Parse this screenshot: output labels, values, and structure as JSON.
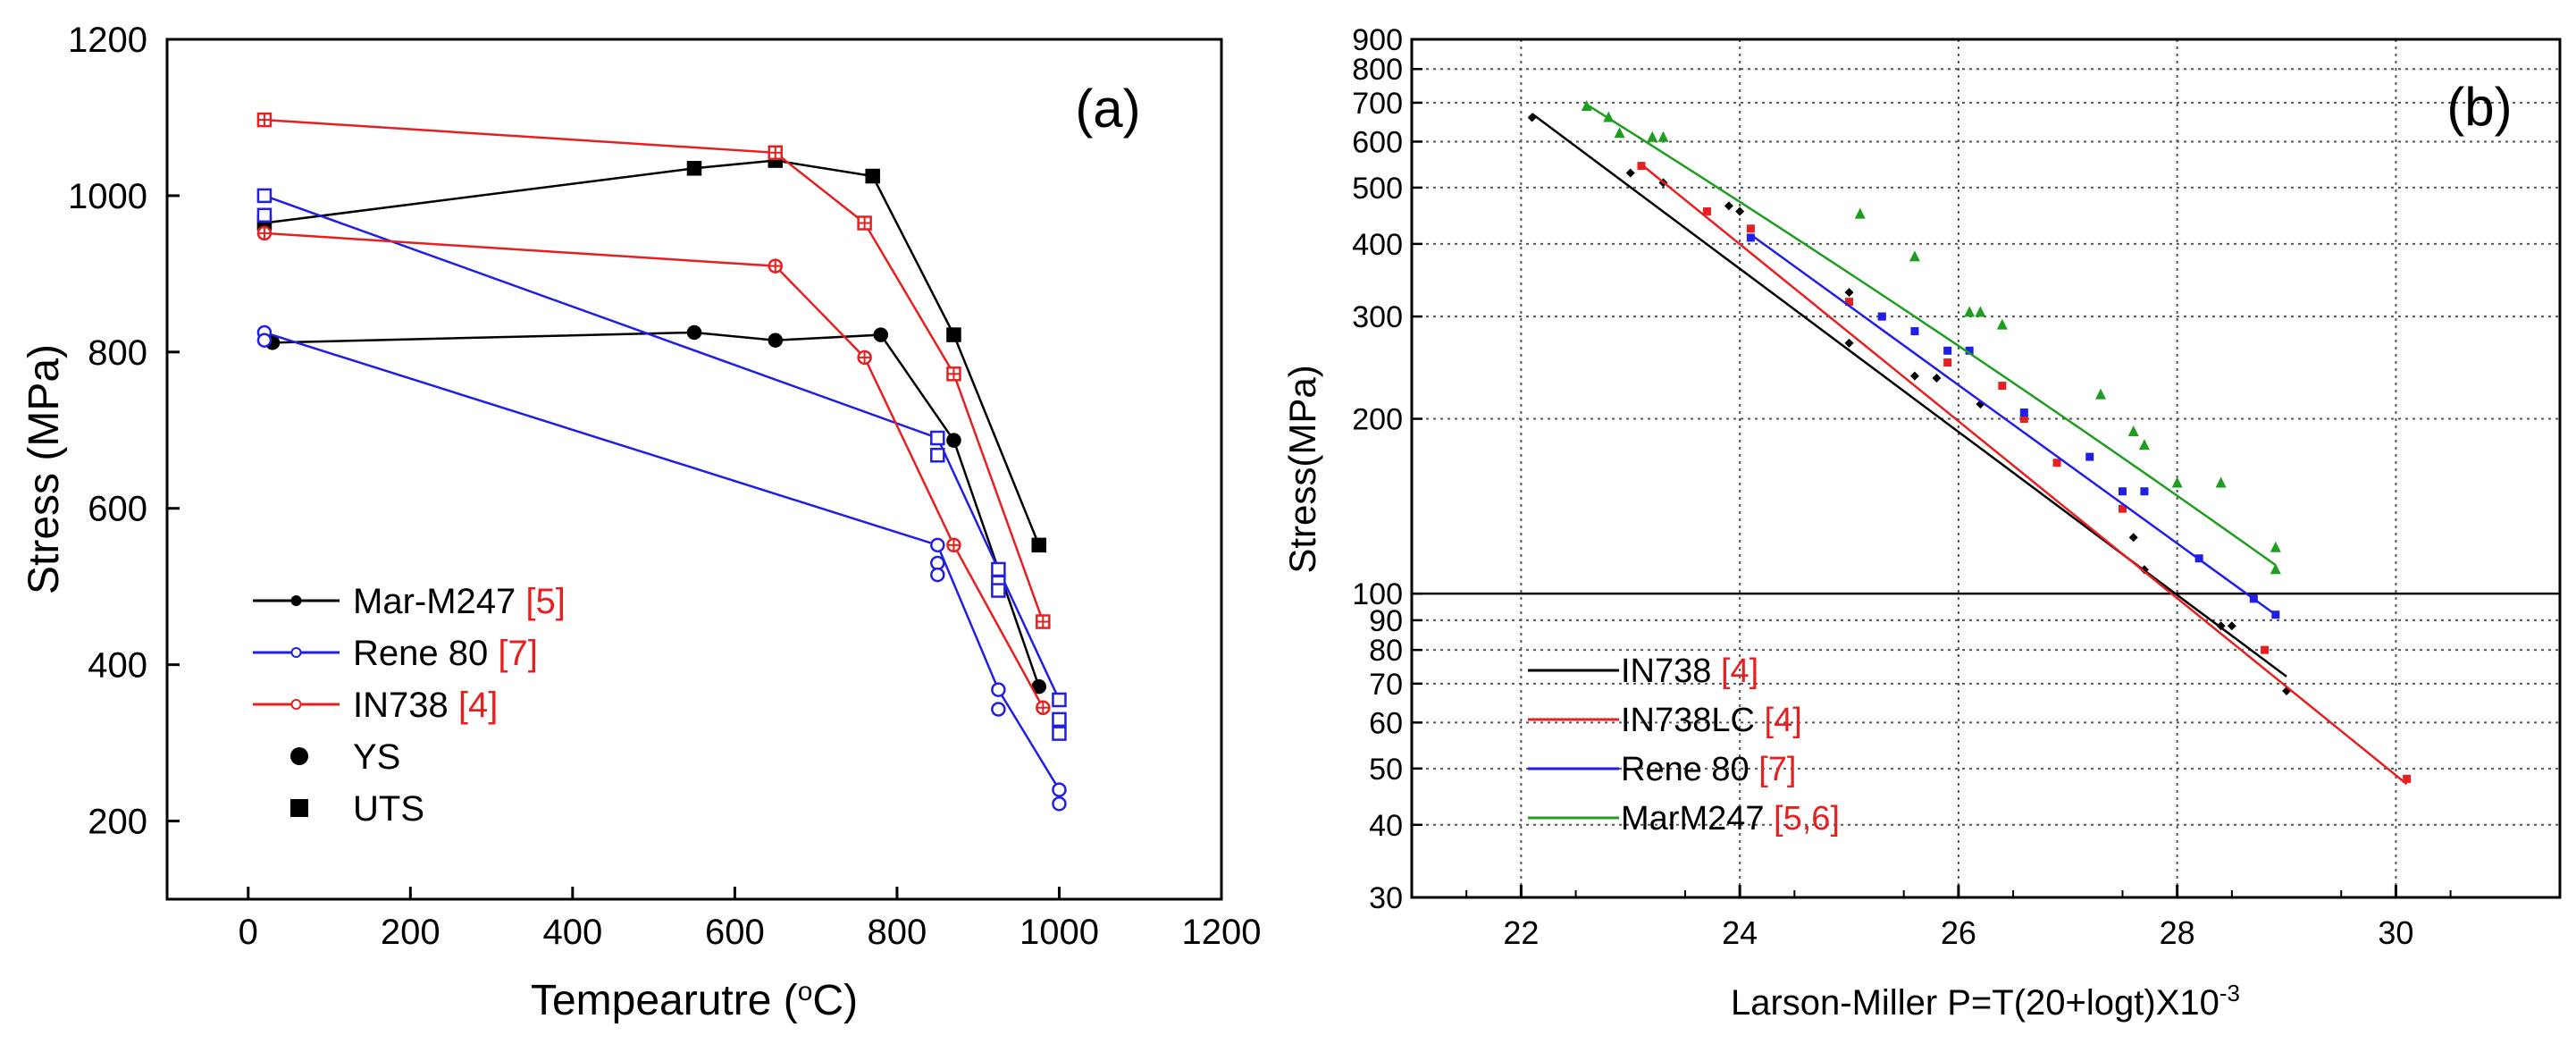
{
  "chart_data": [
    {
      "type": "line",
      "panel_label": "(a)",
      "xlabel_pre": "Tempearutre (",
      "xlabel_sup": "o",
      "xlabel_post": "C)",
      "ylabel": "Stress (MPa)",
      "xlim": [
        -100,
        1200
      ],
      "ylim": [
        100,
        1200
      ],
      "xticks": [
        0,
        200,
        400,
        600,
        800,
        1000,
        1200
      ],
      "yticks": [
        200,
        400,
        600,
        800,
        1000,
        1200
      ],
      "legend": {
        "position": "bottom-left",
        "entries": [
          {
            "name": "Mar-M247",
            "ref": "[5]",
            "color": "#000000",
            "kind": "line"
          },
          {
            "name": "Rene 80",
            "ref": "[7]",
            "color": "#1f1fe6",
            "kind": "line"
          },
          {
            "name": "IN738",
            "ref": "[4]",
            "color": "#e62020",
            "kind": "line"
          },
          {
            "name": "YS",
            "ref": "",
            "color": "#000000",
            "kind": "circle"
          },
          {
            "name": "UTS",
            "ref": "",
            "color": "#000000",
            "kind": "square"
          }
        ]
      },
      "series": [
        {
          "name": "Mar-M247 UTS",
          "color": "#000000",
          "marker": "square-filled",
          "x": [
            20,
            550,
            650,
            770,
            870,
            975
          ],
          "y": [
            965,
            1035,
            1045,
            1025,
            822,
            553
          ]
        },
        {
          "name": "Mar-M247 YS",
          "color": "#000000",
          "marker": "circle-filled",
          "x": [
            30,
            550,
            650,
            780,
            870,
            975
          ],
          "y": [
            812,
            825,
            815,
            822,
            687,
            372
          ]
        },
        {
          "name": "Rene 80 UTS",
          "color": "#1f1fe6",
          "marker": "square-open",
          "x": [
            20,
            850,
            925,
            1000
          ],
          "y": [
            1000,
            690,
            522,
            355
          ],
          "extra_x": [
            20,
            850,
            925,
            925,
            1000,
            1000
          ],
          "extra_y": [
            975,
            668,
            505,
            495,
            330,
            312
          ]
        },
        {
          "name": "Rene 80 YS",
          "color": "#1f1fe6",
          "marker": "circle-open",
          "x": [
            20,
            850,
            925,
            1000
          ],
          "y": [
            825,
            553,
            368,
            240
          ],
          "extra_x": [
            20,
            850,
            850,
            925,
            1000
          ],
          "extra_y": [
            815,
            530,
            515,
            343,
            222
          ]
        },
        {
          "name": "IN738 UTS",
          "color": "#e62020",
          "marker": "square-crossed",
          "x": [
            20,
            650,
            760,
            870,
            980
          ],
          "y": [
            1097,
            1055,
            965,
            772,
            455
          ]
        },
        {
          "name": "IN738 YS",
          "color": "#e62020",
          "marker": "circle-crossed",
          "x": [
            20,
            650,
            760,
            870,
            980
          ],
          "y": [
            952,
            910,
            793,
            553,
            345
          ]
        }
      ]
    },
    {
      "type": "scatter",
      "panel_label": "(b)",
      "xlabel": "Larson-Miller P=T(20+logt)X10",
      "xlabel_sup": "-3",
      "ylabel": "Stress(MPa)",
      "xlim": [
        21,
        31.5
      ],
      "ylim": [
        30,
        900
      ],
      "yscale": "log",
      "xticks": [
        22,
        24,
        26,
        28,
        30
      ],
      "yticks": [
        30,
        40,
        50,
        60,
        70,
        80,
        90,
        100,
        200,
        300,
        400,
        500,
        600,
        700,
        800,
        900
      ],
      "grid": true,
      "reference_line_y": 100,
      "legend": {
        "position": "bottom-left",
        "entries": [
          {
            "name": "IN738",
            "ref": "[4]",
            "color": "#000000"
          },
          {
            "name": "IN738LC",
            "ref": "[4]",
            "color": "#e62020"
          },
          {
            "name": "Rene 80",
            "ref": "[7]",
            "color": "#1f1fe6"
          },
          {
            "name": "MarM247",
            "ref": "[5,6]",
            "color": "#1e9e1e"
          }
        ]
      },
      "series": [
        {
          "name": "IN738",
          "color": "#000000",
          "marker": "diamond",
          "x": [
            22.1,
            23.0,
            23.3,
            23.9,
            24.0,
            25.0,
            25.0,
            25.6,
            25.8,
            26.2,
            27.6,
            27.7,
            28.4,
            28.5,
            29.0
          ],
          "y": [
            660,
            530,
            510,
            465,
            455,
            330,
            270,
            237,
            235,
            212,
            125,
            110,
            88,
            88,
            68
          ],
          "fit_x": [
            22.1,
            29.0
          ],
          "fit_y": [
            670,
            72
          ],
          "fit_curv": 0.0
        },
        {
          "name": "IN738LC",
          "color": "#e62020",
          "marker": "square",
          "x": [
            23.1,
            23.7,
            24.1,
            25.0,
            25.3,
            25.9,
            26.4,
            26.6,
            26.9,
            27.5,
            28.8,
            30.1
          ],
          "y": [
            545,
            455,
            425,
            318,
            300,
            250,
            228,
            200,
            168,
            140,
            80,
            48
          ],
          "fit_x": [
            23.1,
            30.1
          ],
          "fit_y": [
            548,
            47
          ],
          "fit_curv": 0.0
        },
        {
          "name": "Rene 80",
          "color": "#1f1fe6",
          "marker": "square",
          "x": [
            24.1,
            25.3,
            25.6,
            25.9,
            26.1,
            26.6,
            27.2,
            27.5,
            27.7,
            28.2,
            28.7,
            28.9
          ],
          "y": [
            410,
            300,
            283,
            262,
            262,
            205,
            172,
            150,
            150,
            115,
            98,
            92
          ],
          "fit_x": [
            24.1,
            28.9
          ],
          "fit_y": [
            415,
            92
          ],
          "fit_curv": 0.0
        },
        {
          "name": "MarM247",
          "color": "#1e9e1e",
          "marker": "triangle",
          "x": [
            22.6,
            22.8,
            22.9,
            23.2,
            23.3,
            25.1,
            25.6,
            26.1,
            26.2,
            26.4,
            27.3,
            27.6,
            27.7,
            28.0,
            28.4,
            28.9,
            28.9
          ],
          "y": [
            690,
            660,
            620,
            610,
            610,
            450,
            380,
            305,
            305,
            290,
            220,
            190,
            180,
            155,
            155,
            120,
            110
          ],
          "fit_x": [
            22.6,
            28.9
          ],
          "fit_y": [
            695,
            112
          ],
          "fit_curv": 0.05
        }
      ]
    }
  ]
}
